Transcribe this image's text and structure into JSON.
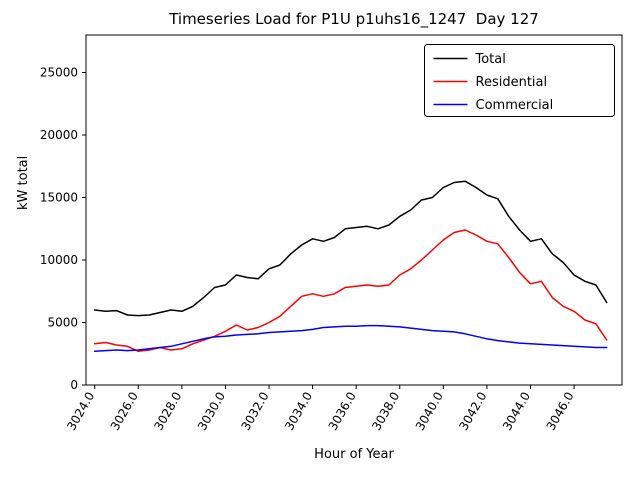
{
  "chart_data": {
    "type": "line",
    "title": "Timeseries Load for P1U p1uhs16_1247  Day 127",
    "xlabel": "Hour of Year",
    "ylabel": "kW total",
    "xlim": [
      3023.6,
      3048.2
    ],
    "ylim": [
      0,
      28000
    ],
    "grid": false,
    "legend_position": "upper right",
    "xticks": [
      3024,
      3026,
      3028,
      3030,
      3032,
      3034,
      3036,
      3038,
      3040,
      3042,
      3044,
      3046
    ],
    "xtick_labels": [
      "3024.0",
      "3026.0",
      "3028.0",
      "3030.0",
      "3032.0",
      "3034.0",
      "3036.0",
      "3038.0",
      "3040.0",
      "3042.0",
      "3044.0",
      "3046.0"
    ],
    "yticks": [
      0,
      5000,
      10000,
      15000,
      20000,
      25000
    ],
    "ytick_labels": [
      "0",
      "5000",
      "10000",
      "15000",
      "20000",
      "25000"
    ],
    "x": [
      3024.0,
      3024.5,
      3025.0,
      3025.5,
      3026.0,
      3026.5,
      3027.0,
      3027.5,
      3028.0,
      3028.5,
      3029.0,
      3029.5,
      3030.0,
      3030.5,
      3031.0,
      3031.5,
      3032.0,
      3032.5,
      3033.0,
      3033.5,
      3034.0,
      3034.5,
      3035.0,
      3035.5,
      3036.0,
      3036.5,
      3037.0,
      3037.5,
      3038.0,
      3038.5,
      3039.0,
      3039.5,
      3040.0,
      3040.5,
      3041.0,
      3041.5,
      3042.0,
      3042.5,
      3043.0,
      3043.5,
      3044.0,
      3044.5,
      3045.0,
      3045.5,
      3046.0,
      3046.5,
      3047.0,
      3047.5
    ],
    "series": [
      {
        "name": "Total",
        "color": "#000000",
        "values": [
          6000,
          5900,
          5950,
          5600,
          5550,
          5600,
          5800,
          6000,
          5900,
          6300,
          7000,
          7800,
          8000,
          8800,
          8600,
          8500,
          9300,
          9600,
          10500,
          11200,
          11700,
          11500,
          11800,
          12500,
          12600,
          12700,
          12500,
          12800,
          13500,
          14000,
          14800,
          15000,
          15800,
          16200,
          16300,
          15800,
          15200,
          14900,
          13500,
          12400,
          11500,
          11700,
          10500,
          9800,
          8800,
          8300,
          8000,
          6600
        ]
      },
      {
        "name": "Residential",
        "color": "#ff0000",
        "values": [
          3300,
          3400,
          3200,
          3100,
          2700,
          2800,
          3000,
          2800,
          2900,
          3300,
          3600,
          3900,
          4300,
          4800,
          4400,
          4600,
          5000,
          5500,
          6300,
          7100,
          7300,
          7100,
          7300,
          7800,
          7900,
          8000,
          7900,
          8000,
          8800,
          9300,
          10000,
          10800,
          11600,
          12200,
          12400,
          12000,
          11500,
          11300,
          10200,
          9000,
          8100,
          8300,
          7000,
          6300,
          5900,
          5200,
          4900,
          3600
        ]
      },
      {
        "name": "Commercial",
        "color": "#0000ff",
        "values": [
          2700,
          2750,
          2800,
          2750,
          2800,
          2900,
          3000,
          3100,
          3300,
          3500,
          3700,
          3850,
          3900,
          4000,
          4050,
          4100,
          4200,
          4250,
          4300,
          4350,
          4450,
          4600,
          4650,
          4700,
          4700,
          4750,
          4750,
          4700,
          4650,
          4550,
          4450,
          4350,
          4300,
          4250,
          4100,
          3900,
          3700,
          3550,
          3450,
          3350,
          3300,
          3250,
          3200,
          3150,
          3100,
          3050,
          3000,
          3000
        ]
      }
    ]
  }
}
